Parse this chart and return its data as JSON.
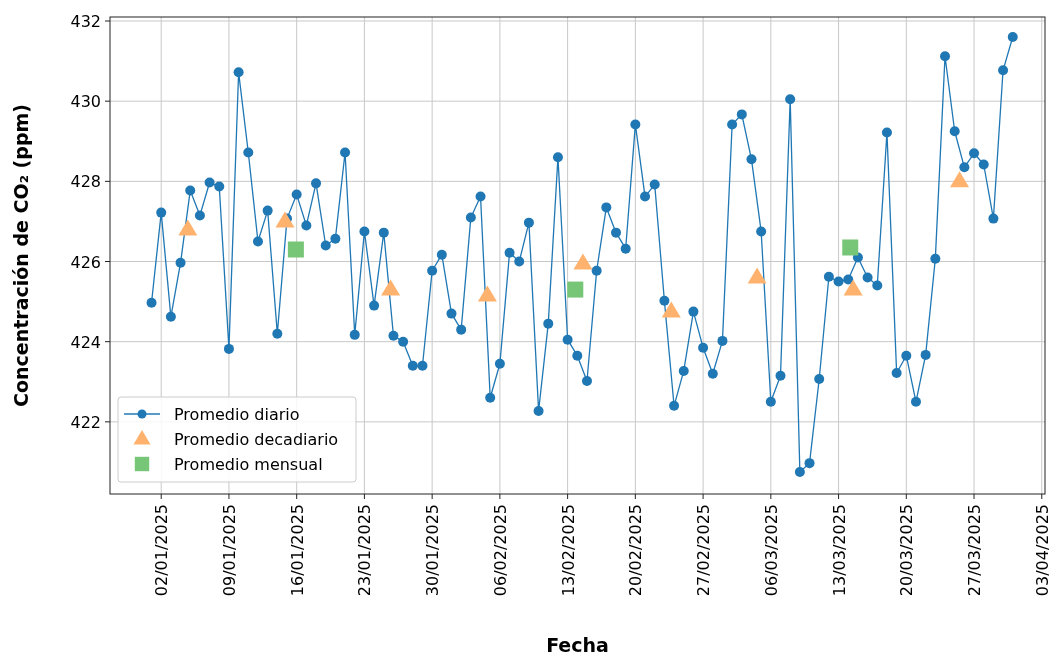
{
  "chart_data": {
    "type": "line",
    "xlabel": "Fecha",
    "ylabel": "Concentración de CO₂ (ppm)",
    "xlim": [
      "2024-12-27T17:00",
      "2025-04-03T08:00"
    ],
    "ylim": [
      420.2,
      432.1
    ],
    "xticks": [
      {
        "value": "2025-01-02",
        "label": "02/01/2025"
      },
      {
        "value": "2025-01-09",
        "label": "09/01/2025"
      },
      {
        "value": "2025-01-16",
        "label": "16/01/2025"
      },
      {
        "value": "2025-01-23",
        "label": "23/01/2025"
      },
      {
        "value": "2025-01-30",
        "label": "30/01/2025"
      },
      {
        "value": "2025-02-06",
        "label": "06/02/2025"
      },
      {
        "value": "2025-02-13",
        "label": "13/02/2025"
      },
      {
        "value": "2025-02-20",
        "label": "20/02/2025"
      },
      {
        "value": "2025-02-27",
        "label": "27/02/2025"
      },
      {
        "value": "2025-03-06",
        "label": "06/03/2025"
      },
      {
        "value": "2025-03-13",
        "label": "13/03/2025"
      },
      {
        "value": "2025-03-20",
        "label": "20/03/2025"
      },
      {
        "value": "2025-03-27",
        "label": "27/03/2025"
      },
      {
        "value": "2025-04-03",
        "label": "03/04/2025"
      }
    ],
    "yticks": [
      422,
      424,
      426,
      428,
      430,
      432
    ],
    "grid": true,
    "legend": "bottom left",
    "series": [
      {
        "name": "Promedio diario",
        "type": "line",
        "marker": "circle",
        "color": "#1f77b4",
        "x": [
          "2025-01-01",
          "2025-01-02",
          "2025-01-03",
          "2025-01-04",
          "2025-01-05",
          "2025-01-06",
          "2025-01-07",
          "2025-01-08",
          "2025-01-09",
          "2025-01-10",
          "2025-01-11",
          "2025-01-12",
          "2025-01-13",
          "2025-01-14",
          "2025-01-15",
          "2025-01-16",
          "2025-01-17",
          "2025-01-18",
          "2025-01-19",
          "2025-01-20",
          "2025-01-21",
          "2025-01-22",
          "2025-01-23",
          "2025-01-24",
          "2025-01-25",
          "2025-01-26",
          "2025-01-27",
          "2025-01-28",
          "2025-01-29",
          "2025-01-30",
          "2025-01-31",
          "2025-02-01",
          "2025-02-02",
          "2025-02-03",
          "2025-02-04",
          "2025-02-05",
          "2025-02-06",
          "2025-02-07",
          "2025-02-08",
          "2025-02-09",
          "2025-02-10",
          "2025-02-11",
          "2025-02-12",
          "2025-02-13",
          "2025-02-14",
          "2025-02-15",
          "2025-02-16",
          "2025-02-17",
          "2025-02-18",
          "2025-02-19",
          "2025-02-20",
          "2025-02-21",
          "2025-02-22",
          "2025-02-23",
          "2025-02-24",
          "2025-02-25",
          "2025-02-26",
          "2025-02-27",
          "2025-02-28",
          "2025-03-01",
          "2025-03-02",
          "2025-03-03",
          "2025-03-04",
          "2025-03-05",
          "2025-03-06",
          "2025-03-07",
          "2025-03-08",
          "2025-03-09",
          "2025-03-10",
          "2025-03-11",
          "2025-03-12",
          "2025-03-13",
          "2025-03-14",
          "2025-03-15",
          "2025-03-16",
          "2025-03-17",
          "2025-03-18",
          "2025-03-19",
          "2025-03-20",
          "2025-03-21",
          "2025-03-22",
          "2025-03-23",
          "2025-03-24",
          "2025-03-25",
          "2025-03-26",
          "2025-03-27",
          "2025-03-28",
          "2025-03-29",
          "2025-03-30",
          "2025-03-31"
        ],
        "values": [
          424.97,
          427.22,
          424.62,
          425.97,
          427.77,
          427.15,
          427.97,
          427.87,
          423.82,
          430.72,
          428.72,
          426.5,
          427.27,
          424.2,
          427.07,
          427.67,
          426.9,
          427.95,
          426.4,
          426.57,
          428.72,
          424.17,
          426.75,
          424.9,
          426.72,
          424.15,
          424.0,
          423.4,
          423.4,
          425.77,
          426.17,
          424.7,
          424.3,
          427.1,
          427.62,
          422.6,
          423.45,
          426.22,
          426.0,
          426.97,
          422.27,
          424.45,
          428.6,
          424.05,
          423.65,
          423.02,
          425.77,
          427.35,
          426.72,
          426.32,
          429.42,
          427.62,
          427.92,
          425.02,
          422.4,
          423.27,
          424.75,
          423.85,
          423.2,
          424.02,
          429.42,
          429.67,
          428.55,
          426.75,
          422.5,
          423.15,
          430.05,
          420.75,
          420.97,
          423.07,
          425.62,
          425.5,
          425.55,
          426.1,
          425.6,
          425.4,
          429.22,
          423.22,
          423.65,
          422.5,
          423.67,
          426.07,
          431.12,
          429.25,
          428.35,
          428.7,
          428.42,
          427.07,
          430.77,
          431.6
        ]
      },
      {
        "name": "Promedio decadiario",
        "type": "scatter",
        "marker": "triangle",
        "color": "#ffb26e",
        "x": [
          "2025-01-04T18:00",
          "2025-01-14T19:00",
          "2025-01-25T17:00",
          "2025-02-04T17:00",
          "2025-02-14T14:00",
          "2025-02-23T17:00",
          "2025-03-04T14:00",
          "2025-03-14T12:00",
          "2025-03-25T12:00"
        ],
        "values": [
          426.8,
          427.0,
          425.3,
          425.15,
          425.95,
          424.75,
          425.6,
          425.3,
          428.0
        ]
      },
      {
        "name": "Promedio mensual",
        "type": "scatter",
        "marker": "square",
        "color": "#77c677",
        "x": [
          "2025-01-15T22:00",
          "2025-02-13T19:00",
          "2025-03-14T05:00"
        ],
        "values": [
          426.3,
          425.3,
          426.35
        ]
      }
    ]
  }
}
